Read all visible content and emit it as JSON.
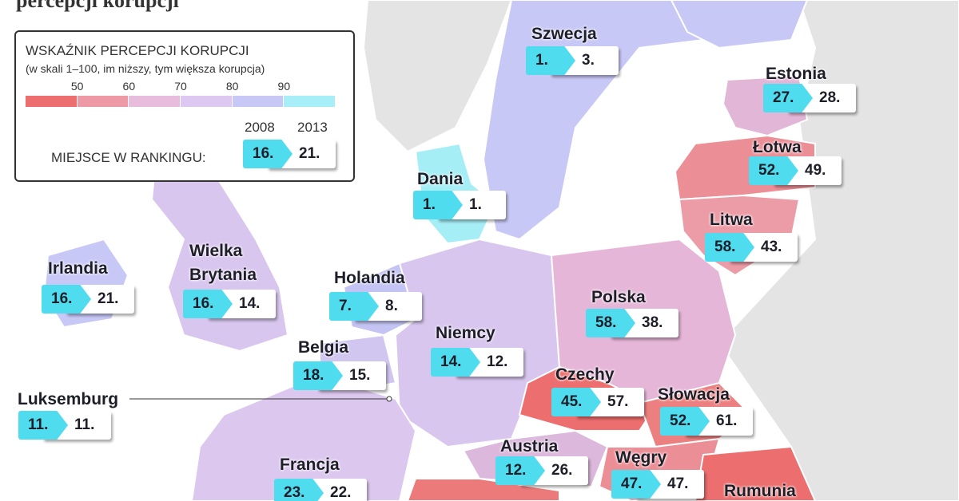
{
  "header": {
    "title": "percepcji korupcji"
  },
  "legend": {
    "title": "WSKAŹNIK PERCEPCJI KORUPCJI",
    "subtitle": "(w skali 1–100, im niższy, tym większa korupcja)",
    "scale": [
      "50",
      "60",
      "70",
      "80",
      "90"
    ],
    "years": [
      "2008",
      "2013"
    ],
    "ranking_label": "MIEJSCE W RANKINGU:",
    "example": [
      "16.",
      "21."
    ]
  },
  "countries": [
    {
      "name": "Szwecja",
      "rank_2008": "1.",
      "rank_2013": "3."
    },
    {
      "name": "Estonia",
      "rank_2008": "27.",
      "rank_2013": "28."
    },
    {
      "name": "Łotwa",
      "rank_2008": "52.",
      "rank_2013": "49."
    },
    {
      "name": "Dania",
      "rank_2008": "1.",
      "rank_2013": "1."
    },
    {
      "name": "Litwa",
      "rank_2008": "58.",
      "rank_2013": "43."
    },
    {
      "name": "Irlandia",
      "rank_2008": "16.",
      "rank_2013": "21."
    },
    {
      "name": "Wielka Brytania",
      "rank_2008": "16.",
      "rank_2013": "14."
    },
    {
      "name": "Holandia",
      "rank_2008": "7.",
      "rank_2013": "8."
    },
    {
      "name": "Polska",
      "rank_2008": "58.",
      "rank_2013": "38."
    },
    {
      "name": "Niemcy",
      "rank_2008": "14.",
      "rank_2013": "12."
    },
    {
      "name": "Belgia",
      "rank_2008": "18.",
      "rank_2013": "15."
    },
    {
      "name": "Czechy",
      "rank_2008": "45.",
      "rank_2013": "57."
    },
    {
      "name": "Słowacja",
      "rank_2008": "52.",
      "rank_2013": "61."
    },
    {
      "name": "Luksemburg",
      "rank_2008": "11.",
      "rank_2013": "11."
    },
    {
      "name": "Austria",
      "rank_2008": "12.",
      "rank_2013": "26."
    },
    {
      "name": "Węgry",
      "rank_2008": "47.",
      "rank_2013": "47."
    },
    {
      "name": "Francja",
      "rank_2008": "23.",
      "rank_2013": "22."
    },
    {
      "name": "Rumunia"
    }
  ]
}
